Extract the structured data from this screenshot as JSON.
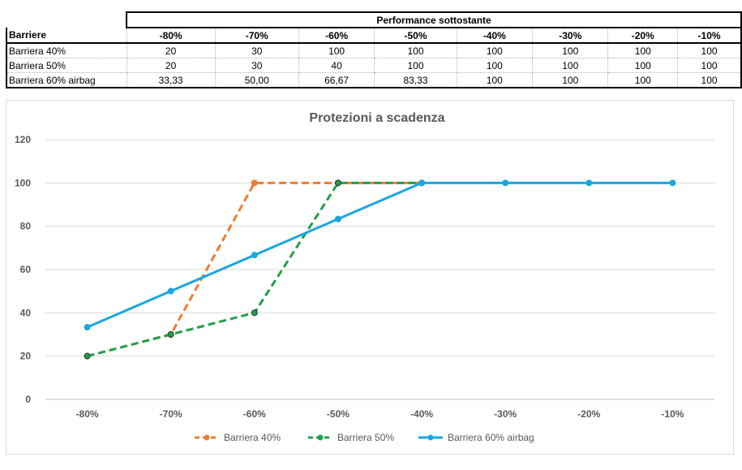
{
  "table": {
    "super_header": "Performance sottostante",
    "row_header": "Barriere",
    "columns": [
      "-80%",
      "-70%",
      "-60%",
      "-50%",
      "-40%",
      "-30%",
      "-20%",
      "-10%"
    ],
    "rows": [
      {
        "label": "Barriera 40%",
        "values": [
          "20",
          "30",
          "100",
          "100",
          "100",
          "100",
          "100",
          "100"
        ]
      },
      {
        "label": "Barriera 50%",
        "values": [
          "20",
          "30",
          "40",
          "100",
          "100",
          "100",
          "100",
          "100"
        ]
      },
      {
        "label": "Barriera 60% airbag",
        "values": [
          "33,33",
          "50,00",
          "66,67",
          "83,33",
          "100",
          "100",
          "100",
          "100"
        ]
      }
    ]
  },
  "chart_data": {
    "type": "line",
    "title": "Protezioni a scadenza",
    "categories": [
      "-80%",
      "-70%",
      "-60%",
      "-50%",
      "-40%",
      "-30%",
      "-20%",
      "-10%"
    ],
    "ylim": [
      0,
      120
    ],
    "yticks": [
      0,
      20,
      40,
      60,
      80,
      100,
      120
    ],
    "grid": true,
    "legend_position": "bottom",
    "series": [
      {
        "name": "Barriera 40%",
        "color": "#ED7D31",
        "style": "dashed",
        "values": [
          20,
          30,
          100,
          100,
          100,
          null,
          null,
          null
        ]
      },
      {
        "name": "Barriera 50%",
        "color": "#1FA04A",
        "style": "dashed",
        "values": [
          20,
          30,
          40,
          100,
          100,
          null,
          null,
          null
        ]
      },
      {
        "name": "Barriera 60% airbag",
        "color": "#1BA6E0",
        "style": "solid",
        "values": [
          33.33,
          50,
          66.67,
          83.33,
          100,
          100,
          100,
          100
        ]
      }
    ]
  }
}
